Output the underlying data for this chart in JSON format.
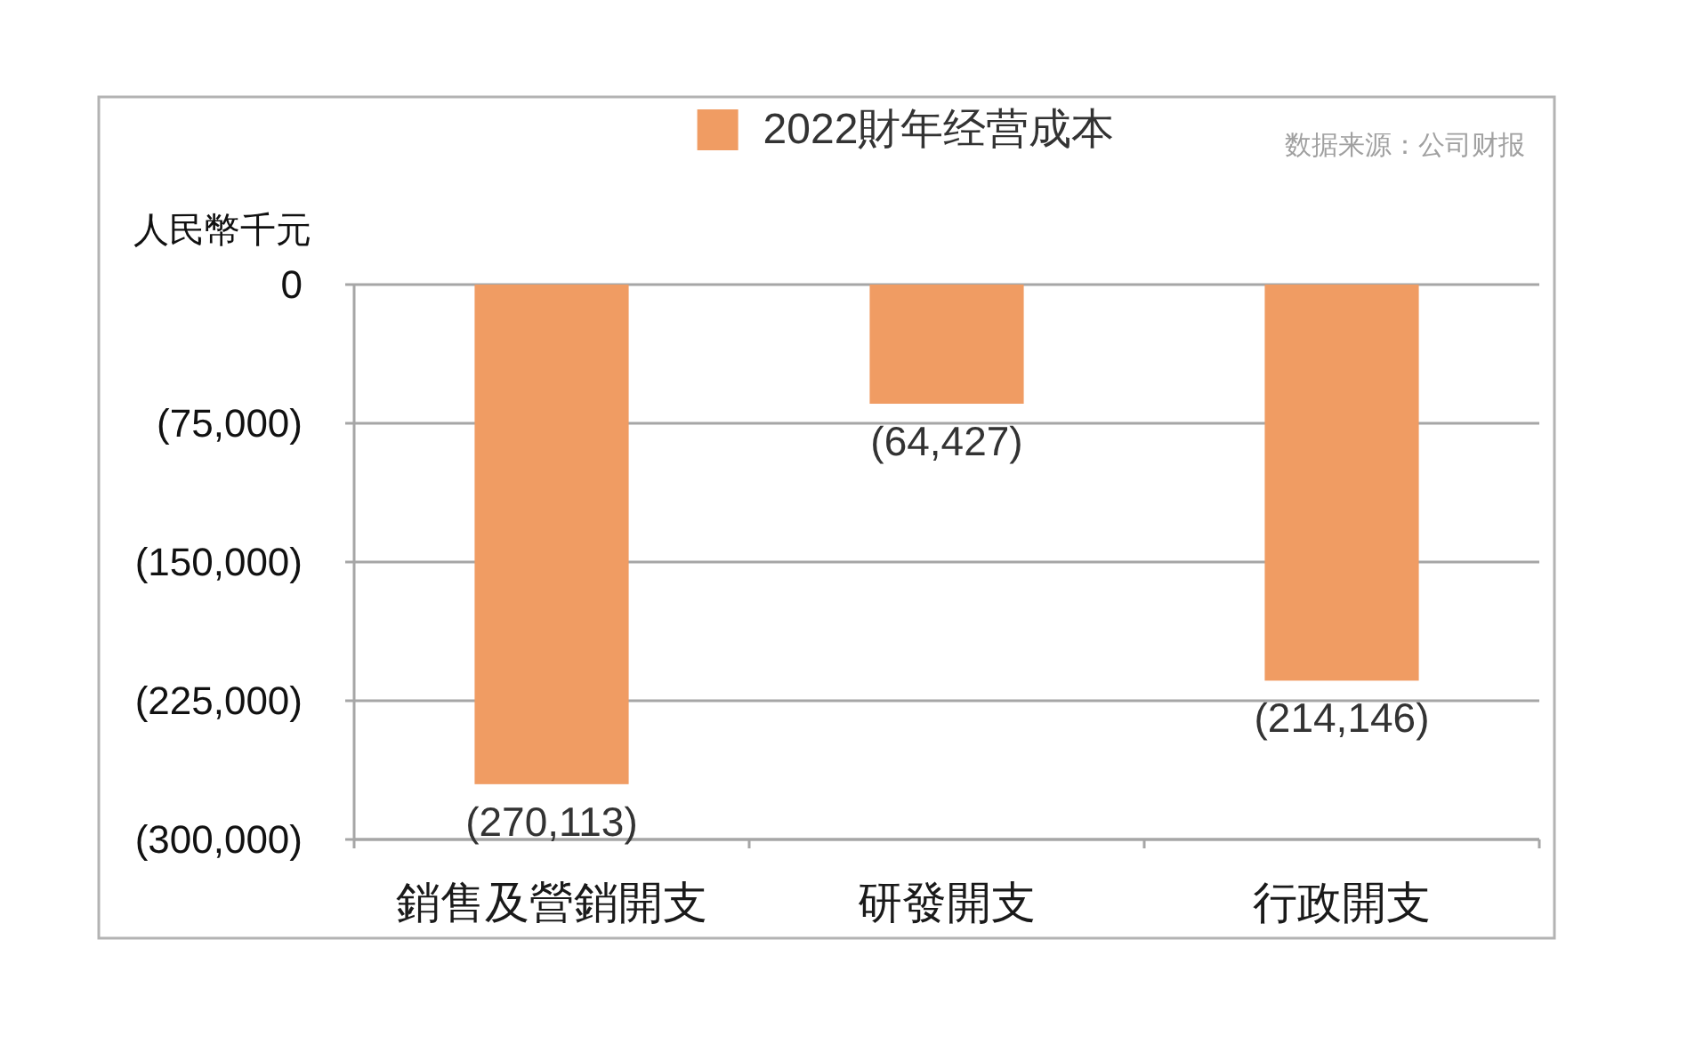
{
  "chart_data": {
    "type": "bar",
    "categories": [
      "銷售及營銷開支",
      "研發開支",
      "行政開支"
    ],
    "series": [
      {
        "name": "2022財年经营成本",
        "color": "#f09c63",
        "values": [
          -270113,
          -64427,
          -214146
        ],
        "value_labels": [
          "(270,113)",
          "(64,427)",
          "(214,146)"
        ]
      }
    ],
    "ylabel": "人民幣千元",
    "ylim": [
      -300000,
      0
    ],
    "yticks": [
      0,
      {
        "value": -75000,
        "label": "(75,000)"
      },
      {
        "value": -150000,
        "label": "(150,000)"
      },
      {
        "value": -225000,
        "label": "(225,000)"
      },
      {
        "value": -300000,
        "label": "(300,000)"
      }
    ],
    "grid": "y",
    "legend": "top",
    "annotations": [
      "数据来源：公司财报"
    ]
  }
}
